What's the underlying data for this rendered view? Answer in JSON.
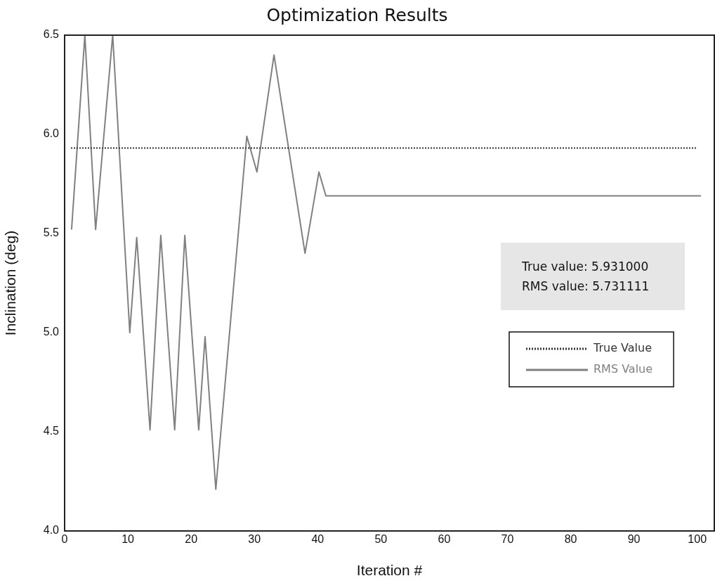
{
  "chart_data": {
    "type": "line",
    "title": "Optimization Results",
    "xlabel": "Iteration #",
    "ylabel": "Inclination (deg)",
    "xlim": [
      0,
      102.7
    ],
    "xticks": [
      0,
      10,
      20,
      30,
      40,
      50,
      60,
      70,
      80,
      90,
      100
    ],
    "ylim": [
      4.0,
      6.5
    ],
    "yticks": [
      {
        "value": 4.0,
        "label": "4.0"
      },
      {
        "value": 4.5,
        "label": "4.5"
      },
      {
        "value": 5.0,
        "label": "5.0"
      },
      {
        "value": 5.5,
        "label": "5.5"
      },
      {
        "value": 6.0,
        "label": "6.0"
      },
      {
        "value": 6.5,
        "label": "6.5"
      }
    ],
    "series": [
      {
        "name": "True Value",
        "color": "#333333",
        "line_style": "dotted",
        "x": [
          1,
          100
        ],
        "values": [
          5.931,
          5.931
        ]
      },
      {
        "name": "RMS Value",
        "color": "#808080",
        "line_style": "solid",
        "x": [
          1.1,
          3.2,
          4.9,
          7.6,
          10.3,
          11.4,
          13.5,
          15.2,
          17.4,
          19,
          21.2,
          22.2,
          23.9,
          28.8,
          30.4,
          33.1,
          38,
          40.2,
          41.3,
          100.6
        ],
        "values": [
          5.52,
          6.5,
          5.52,
          6.5,
          5.0,
          5.48,
          4.51,
          5.49,
          4.51,
          5.49,
          4.51,
          4.98,
          4.21,
          5.99,
          5.81,
          6.4,
          5.4,
          5.81,
          5.69,
          5.69
        ]
      }
    ],
    "annotations": [
      "True value: 5.931000",
      "RMS value: 5.731111"
    ],
    "legend": "right",
    "grid": false,
    "marker": "none"
  }
}
